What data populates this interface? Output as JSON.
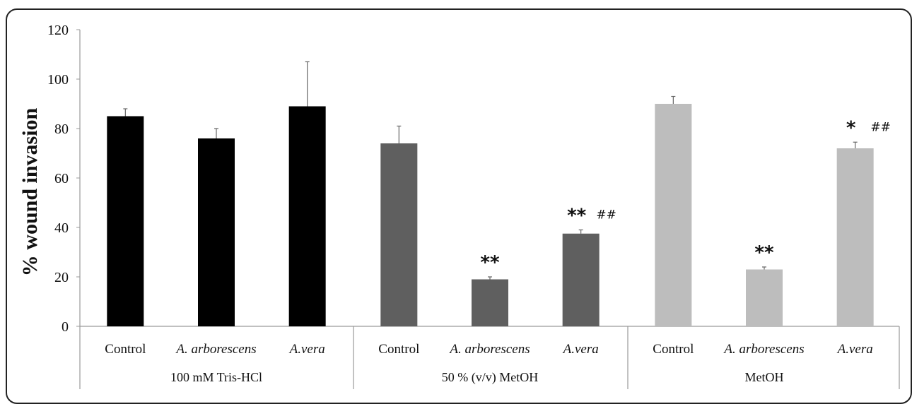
{
  "chart_data": {
    "type": "bar",
    "title": "",
    "ylabel": "% wound invasion",
    "ylim": [
      0,
      120
    ],
    "yticks": [
      0,
      20,
      40,
      60,
      80,
      100,
      120
    ],
    "grid": false,
    "groups": [
      {
        "label": "100 mM Tris-HCl",
        "color": "#000000",
        "bars": [
          {
            "category": "Control",
            "italic": false,
            "value": 85,
            "error": 3,
            "sig_star": "",
            "sig_hash": ""
          },
          {
            "category": "A. arborescens",
            "italic": true,
            "value": 76,
            "error": 4,
            "sig_star": "",
            "sig_hash": ""
          },
          {
            "category": "A.vera",
            "italic": true,
            "value": 89,
            "error": 18,
            "sig_star": "",
            "sig_hash": ""
          }
        ]
      },
      {
        "label": "50 % (v/v)  MetOH",
        "color": "#5f5f5f",
        "bars": [
          {
            "category": "Control",
            "italic": false,
            "value": 74,
            "error": 7,
            "sig_star": "",
            "sig_hash": ""
          },
          {
            "category": "A. arborescens",
            "italic": true,
            "value": 19,
            "error": 1,
            "sig_star": "**",
            "sig_hash": ""
          },
          {
            "category": "A.vera",
            "italic": true,
            "value": 37.5,
            "error": 1.5,
            "sig_star": "**",
            "sig_hash": "##"
          }
        ]
      },
      {
        "label": "MetOH",
        "color": "#bdbdbd",
        "bars": [
          {
            "category": "Control",
            "italic": false,
            "value": 90,
            "error": 3,
            "sig_star": "",
            "sig_hash": ""
          },
          {
            "category": "A. arborescens",
            "italic": true,
            "value": 23,
            "error": 1,
            "sig_star": "**",
            "sig_hash": ""
          },
          {
            "category": "A.vera",
            "italic": true,
            "value": 72,
            "error": 2.5,
            "sig_star": "*",
            "sig_hash": "##"
          }
        ]
      }
    ]
  }
}
